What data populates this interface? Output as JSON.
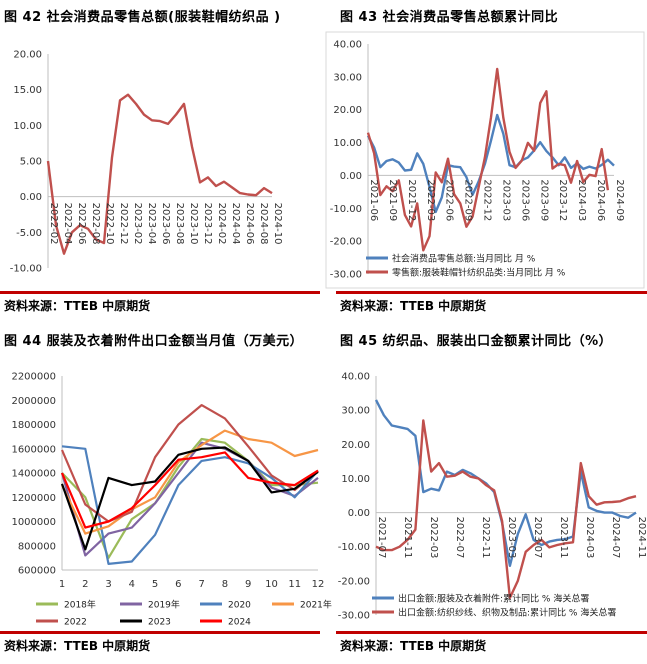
{
  "panels": [
    {
      "title": "图 42  社会消费品零售总额(服装鞋帽纺织品  )",
      "source": "资料来源：TTEB  中原期货"
    },
    {
      "title": "图 43 社会消费品零售总额累计同比",
      "source": "资料来源：TTEB  中原期货"
    },
    {
      "title": "图 44  服装及衣着附件出口金额当月值（万美元）",
      "source": "资料来源：TTEB  中原期货"
    },
    {
      "title": "图 45 纺织品、服装出口金额累计同比（%）",
      "source": "资料来源：TTEB  中原期货"
    }
  ],
  "colors": {
    "red": "#c0504d",
    "blue": "#4f81bd",
    "accent": "#c00000"
  },
  "chart_data": [
    {
      "type": "line",
      "title": "社会消费品零售总额(服装鞋帽纺织品  )",
      "ylim": [
        -10,
        20
      ],
      "yticks": [
        "20.00",
        "15.00",
        "10.00",
        "5.00",
        "0.00",
        "-5.00",
        "-10.00"
      ],
      "xticks": [
        "2022-02",
        "2022-04",
        "2022-06",
        "2022-08",
        "2022-10",
        "2022-12",
        "2023-02",
        "2023-04",
        "2023-06",
        "2023-08",
        "2023-10",
        "2023-12",
        "2024-02",
        "2024-04",
        "2024-06",
        "2024-08",
        "2024-10"
      ],
      "series": [
        {
          "name": "服装鞋帽纺织品",
          "color": "#c0504d",
          "values": [
            5,
            -4,
            -8,
            -5,
            -4,
            -4.5,
            -6,
            -6.5,
            5.5,
            13.5,
            14.3,
            13,
            11.5,
            10.7,
            10.6,
            10.2,
            11.5,
            13,
            7,
            2,
            2.7,
            1.5,
            2.1,
            1.3,
            0.5,
            0.3,
            0.2,
            1.2,
            0.5
          ]
        }
      ]
    },
    {
      "type": "line",
      "title": "社会消费品零售总额累计同比",
      "ylim": [
        -30,
        40
      ],
      "yticks": [
        "40.00",
        "30.00",
        "20.00",
        "10.00",
        "0.00",
        "-10.00",
        "-20.00",
        "-30.00"
      ],
      "xticks": [
        "2021-06",
        "2021-09",
        "2021-12",
        "2022-03",
        "2022-06",
        "2022-09",
        "2022-12",
        "2023-03",
        "2023-06",
        "2023-09",
        "2023-12",
        "2024-03",
        "2024-06",
        "2024-09"
      ],
      "legend": [
        "社会消费品零售总额:当月同比 月 %",
        "零售额:服装鞋帽针纺织品类:当月同比 月 %"
      ],
      "series": [
        {
          "name": "社会消费品零售总额:当月同比 月 %",
          "color": "#4f81bd",
          "values": [
            12.1,
            8.5,
            2.5,
            4.4,
            4.9,
            3.9,
            1.5,
            1.7,
            6.7,
            3.5,
            -3.5,
            -11.1,
            -6.7,
            3.1,
            2.7,
            2.5,
            -0.5,
            -5.9,
            -1.8,
            3.5,
            10.6,
            18.4,
            12.7,
            3.1,
            2.5,
            4.6,
            5.5,
            7.6,
            10.1,
            7.4,
            5.5,
            3.1,
            5.5,
            2.3,
            3.7,
            2,
            2.7,
            2.1,
            3.2,
            4.8,
            3
          ]
        },
        {
          "name": "零售额:服装鞋帽针纺织品类:当月同比 月 %",
          "color": "#c0504d",
          "values": [
            13,
            6.8,
            -6,
            -3.3,
            -4.8,
            -1.5,
            -12,
            -15.5,
            -8.5,
            -22.8,
            -18.5,
            0.9,
            -2.1,
            5.1,
            -5.7,
            -8.5,
            -15.6,
            -12.5,
            -3.5,
            5.5,
            17.7,
            32.4,
            17.6,
            7.2,
            2.3,
            4.5,
            9.9,
            7.5,
            22,
            25.6,
            2.1,
            3.5,
            3.1,
            -2.2,
            4.4,
            -2,
            0.2,
            -0.2,
            8,
            -4.5
          ]
        }
      ]
    },
    {
      "type": "line",
      "title": "服装及衣着附件出口金额当月值（万美元）",
      "ylim": [
        600000,
        2200000
      ],
      "yticks": [
        "2200000",
        "2000000",
        "1800000",
        "1600000",
        "1400000",
        "1200000",
        "1000000",
        "800000",
        "600000"
      ],
      "categories": [
        "1",
        "2",
        "3",
        "4",
        "5",
        "6",
        "7",
        "8",
        "9",
        "10",
        "11",
        "12"
      ],
      "legend": [
        "2018年",
        "2019年",
        "2020",
        "2021年",
        "2022",
        "2023",
        "2024"
      ],
      "series": [
        {
          "name": "2018年",
          "color": "#9bbb59",
          "values": [
            1400000,
            1200000,
            700000,
            1020000,
            1150000,
            1450000,
            1680000,
            1650000,
            1500000,
            1300000,
            1300000,
            1320000
          ]
        },
        {
          "name": "2019年",
          "color": "#8064a2",
          "values": [
            1400000,
            720000,
            900000,
            950000,
            1150000,
            1400000,
            1650000,
            1600000,
            1500000,
            1280000,
            1210000,
            1360000
          ]
        },
        {
          "name": "2020",
          "color": "#4f81bd",
          "values": [
            1620000,
            1600000,
            650000,
            670000,
            890000,
            1300000,
            1500000,
            1530000,
            1480000,
            1360000,
            1200000,
            1420000
          ]
        },
        {
          "name": "2021年",
          "color": "#f79646",
          "values": [
            1300000,
            900000,
            960000,
            1100000,
            1200000,
            1490000,
            1630000,
            1750000,
            1680000,
            1650000,
            1540000,
            1590000
          ]
        },
        {
          "name": "2022",
          "color": "#c0504d",
          "values": [
            1590000,
            1140000,
            1000000,
            1080000,
            1530000,
            1800000,
            1960000,
            1850000,
            1620000,
            1380000,
            1260000,
            1420000
          ]
        },
        {
          "name": "2023",
          "color": "#000000",
          "values": [
            1310000,
            770000,
            1360000,
            1300000,
            1330000,
            1550000,
            1600000,
            1610000,
            1500000,
            1240000,
            1270000,
            1410000
          ]
        },
        {
          "name": "2024",
          "color": "#ff0000",
          "values": [
            1400000,
            950000,
            1000000,
            1110000,
            1300000,
            1510000,
            1530000,
            1570000,
            1360000,
            1320000,
            1300000,
            1420000
          ]
        }
      ]
    },
    {
      "type": "line",
      "title": "纺织品、服装出口金额累计同比（%）",
      "ylim": [
        -30,
        40
      ],
      "yticks": [
        "40.00",
        "30.00",
        "20.00",
        "10.00",
        "0.00",
        "-10.00",
        "-20.00",
        "-30.00"
      ],
      "xticks": [
        "2021-07",
        "2021-11",
        "2022-03",
        "2022-07",
        "2022-11",
        "2023-03",
        "2023-07",
        "2023-11",
        "2024-03",
        "2024-07",
        "2024-11"
      ],
      "legend": [
        "出口金额:服装及衣着附件:累计同比 % 海关总署",
        "出口金额:纺织纱线、织物及制品:累计同比 % 海关总署"
      ],
      "series": [
        {
          "name": "出口金额:服装及衣着附件:累计同比 % 海关总署",
          "color": "#4f81bd",
          "values": [
            33,
            28.5,
            25.5,
            25,
            24.5,
            22.5,
            6,
            7,
            6.5,
            12,
            11,
            12.5,
            11.5,
            10,
            8.5,
            6,
            -3,
            -15.6,
            -6.3,
            -0.5,
            -8,
            -9.5,
            -8.5,
            -8,
            -7.8,
            -7,
            12,
            1.5,
            0.5,
            0,
            0,
            -1,
            -1.5,
            0
          ]
        },
        {
          "name": "出口金额:纺织纱线、织物及制品:累计同比 % 海关总署",
          "color": "#c0504d",
          "values": [
            -10,
            -11,
            -11,
            -10,
            -8,
            -5,
            27,
            12,
            14.5,
            10.5,
            10.8,
            12,
            10.5,
            10,
            8,
            6.5,
            -2.5,
            -25,
            -20,
            -11.5,
            -9.5,
            -8,
            -10.2,
            -9.5,
            -9,
            -8.7,
            14.5,
            4.8,
            2.3,
            3,
            3.1,
            3.3,
            4.2,
            4.8
          ]
        }
      ]
    }
  ]
}
